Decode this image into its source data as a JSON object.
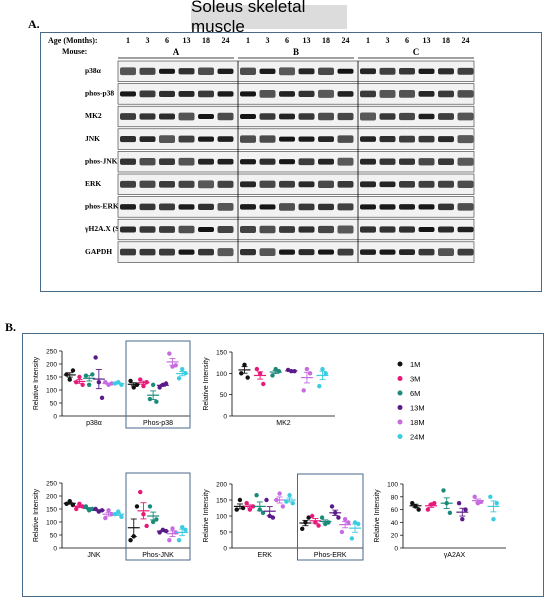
{
  "title": "Soleus skeletal muscle",
  "panel_a": {
    "letter": "A.",
    "age_label": "Age (Months):",
    "mouse_label": "Mouse:",
    "ages": [
      "1",
      "3",
      "6",
      "13",
      "18",
      "24"
    ],
    "mice": [
      "A",
      "B",
      "C"
    ],
    "proteins": [
      "p38α",
      "phos-p38",
      "MK2",
      "JNK",
      "phos-JNK",
      "ERK",
      "phos-ERK",
      "γH2A.X (S)",
      "GAPDH"
    ]
  },
  "panel_b": {
    "letter": "B.",
    "legend": [
      {
        "label": "1M",
        "color": "#111111"
      },
      {
        "label": "3M",
        "color": "#e8187a"
      },
      {
        "label": "6M",
        "color": "#1a8a7a"
      },
      {
        "label": "13M",
        "color": "#5a1a8a"
      },
      {
        "label": "18M",
        "color": "#c86ae0"
      },
      {
        "label": "24M",
        "color": "#3ccce0"
      }
    ],
    "chart_data": [
      {
        "type": "scatter",
        "ylabel": "Relative Intensity",
        "ylim": [
          0,
          250
        ],
        "yticks": [
          0,
          50,
          100,
          150,
          200,
          250
        ],
        "categories": [
          "p38α",
          "Phos-p38"
        ],
        "groups": [
          {
            "category": "p38α",
            "points": [
              [
                160,
                140,
                175
              ],
              [
                130,
                150,
                120
              ],
              [
                155,
                120,
                160
              ],
              [
                225,
                130,
                70
              ],
              [
                130,
                120,
                125
              ],
              [
                125,
                130,
                120
              ]
            ],
            "means": [
              158,
              133,
              145,
              142,
              125,
              125
            ]
          },
          {
            "category": "Phos-p38",
            "points": [
              [
                135,
                110,
                120
              ],
              [
                140,
                115,
                130
              ],
              [
                65,
                120,
                55
              ],
              [
                110,
                120,
                125
              ],
              [
                240,
                190,
                195
              ],
              [
                145,
                180,
                165
              ]
            ],
            "means": [
              122,
              128,
              80,
              118,
              208,
              163
            ]
          }
        ]
      },
      {
        "type": "scatter",
        "ylabel": "Relative Intensity",
        "ylim": [
          0,
          150
        ],
        "yticks": [
          0,
          50,
          100,
          150
        ],
        "categories": [
          "MK2"
        ],
        "groups": [
          {
            "category": "MK2",
            "points": [
              [
                100,
                120,
                90
              ],
              [
                110,
                100,
                75
              ],
              [
                95,
                110,
                105
              ],
              [
                108,
                105,
                105
              ],
              [
                60,
                110,
                100
              ],
              [
                70,
                110,
                100
              ]
            ],
            "means": [
              108,
              95,
              103,
              106,
              90,
              95
            ]
          }
        ]
      },
      {
        "type": "scatter",
        "ylabel": "Relative Intensity",
        "ylim": [
          0,
          250
        ],
        "yticks": [
          0,
          50,
          100,
          150,
          200,
          250
        ],
        "categories": [
          "JNK",
          "Phos-JNK"
        ],
        "groups": [
          {
            "category": "JNK",
            "points": [
              [
                170,
                180,
                165
              ],
              [
                150,
                170,
                160
              ],
              [
                160,
                145,
                150
              ],
              [
                150,
                140,
                145
              ],
              [
                115,
                145,
                130
              ],
              [
                130,
                140,
                120
              ]
            ],
            "means": [
              172,
              160,
              152,
              145,
              130,
              130
            ]
          },
          {
            "category": "Phos-JNK",
            "points": [
              [
                30,
                45,
                160
              ],
              [
                215,
                130,
                85
              ],
              [
                160,
                100,
                110
              ],
              [
                60,
                70,
                65
              ],
              [
                30,
                75,
                60
              ],
              [
                30,
                80,
                70
              ]
            ],
            "means": [
              78,
              143,
              123,
              65,
              55,
              60
            ]
          }
        ]
      },
      {
        "type": "scatter",
        "ylabel": "Relative Intensity",
        "ylim": [
          0,
          200
        ],
        "yticks": [
          0,
          50,
          100,
          150,
          200
        ],
        "categories": [
          "ERK",
          "Phos-ERK"
        ],
        "groups": [
          {
            "category": "ERK",
            "points": [
              [
                120,
                150,
                125
              ],
              [
                140,
                120,
                130
              ],
              [
                165,
                120,
                110
              ],
              [
                150,
                100,
                95
              ],
              [
                150,
                170,
                130
              ],
              [
                145,
                165,
                140
              ]
            ],
            "means": [
              130,
              130,
              130,
              115,
              150,
              150
            ]
          },
          {
            "category": "Phos-ERK",
            "points": [
              [
                60,
                80,
                95
              ],
              [
                100,
                80,
                70
              ],
              [
                95,
                75,
                80
              ],
              [
                130,
                110,
                95
              ],
              [
                50,
                90,
                80
              ],
              [
                30,
                80,
                75
              ]
            ],
            "means": [
              78,
              85,
              83,
              110,
              73,
              62
            ]
          }
        ]
      },
      {
        "type": "scatter",
        "ylabel": "Relative Intensity",
        "ylim": [
          0,
          100
        ],
        "yticks": [
          0,
          20,
          40,
          60,
          80,
          100
        ],
        "categories": [
          "γA2AX"
        ],
        "groups": [
          {
            "category": "γA2AX",
            "points": [
              [
                70,
                65,
                60
              ],
              [
                60,
                68,
                70
              ],
              [
                90,
                70,
                55
              ],
              [
                70,
                45,
                60
              ],
              [
                80,
                70,
                72
              ],
              [
                80,
                45,
                70
              ]
            ],
            "means": [
              66,
              66,
              70,
              56,
              74,
              65
            ]
          }
        ]
      }
    ]
  }
}
